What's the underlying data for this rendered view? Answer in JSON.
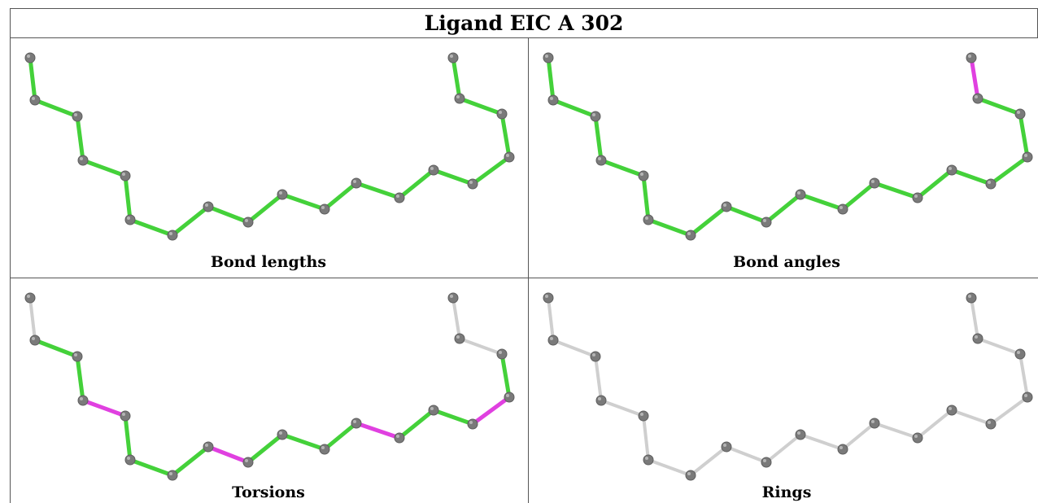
{
  "title": "Ligand EIC A 302",
  "panels": [
    {
      "caption": "Bond lengths"
    },
    {
      "caption": "Bond angles"
    },
    {
      "caption": "Torsions"
    },
    {
      "caption": "Rings"
    }
  ],
  "colors": {
    "good": "#44d13a",
    "outlier": "#e040e0",
    "neutral": "#cfcfcf",
    "atom": "#7a7a7a"
  },
  "bond_states": {
    "bond_lengths": [
      "good",
      "good",
      "good",
      "good",
      "good",
      "good",
      "good",
      "good",
      "good",
      "good",
      "good",
      "good",
      "good",
      "good",
      "good",
      "good",
      "good",
      "good",
      "outlier"
    ],
    "bond_angles": [
      "good",
      "good",
      "good",
      "good",
      "good",
      "good",
      "good",
      "good",
      "good",
      "good",
      "good",
      "good",
      "good",
      "good",
      "good",
      "good",
      "good",
      "outlier",
      "outlier"
    ],
    "torsions": [
      "neutral",
      "good",
      "good",
      "outlier",
      "good",
      "good",
      "good",
      "outlier",
      "good",
      "good",
      "good",
      "outlier",
      "good",
      "good",
      "outlier",
      "good",
      "neutral",
      "neutral",
      "neutral"
    ],
    "rings": [
      "neutral",
      "neutral",
      "neutral",
      "neutral",
      "neutral",
      "neutral",
      "neutral",
      "neutral",
      "neutral",
      "neutral",
      "neutral",
      "neutral",
      "neutral",
      "neutral",
      "neutral",
      "neutral",
      "neutral",
      "neutral",
      "neutral"
    ]
  }
}
